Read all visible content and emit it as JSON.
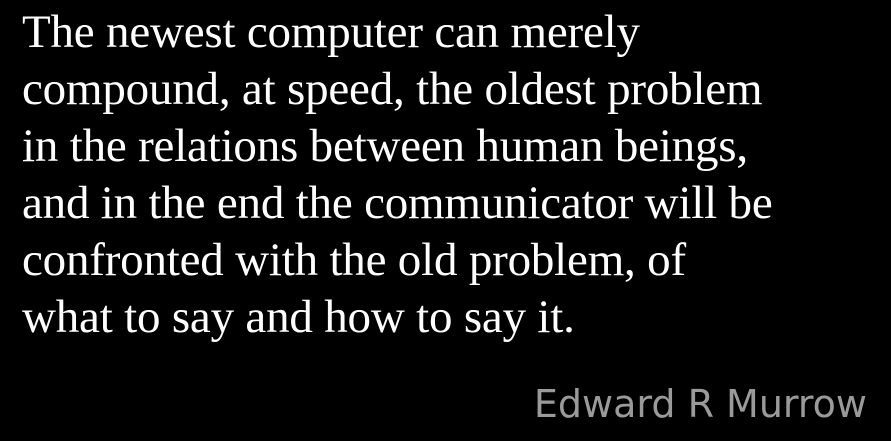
{
  "quote": {
    "lines": [
      "The newest computer can merely",
      "compound, at speed, the oldest problem",
      "in the relations between human beings,",
      "and in the end the communicator will be",
      "confronted with the old problem, of",
      "what to say and how to say it."
    ],
    "author": "Edward R Murrow"
  },
  "colors": {
    "background": "#000000",
    "quote_text": "#ffffff",
    "author_text": "#9a9a9a"
  }
}
